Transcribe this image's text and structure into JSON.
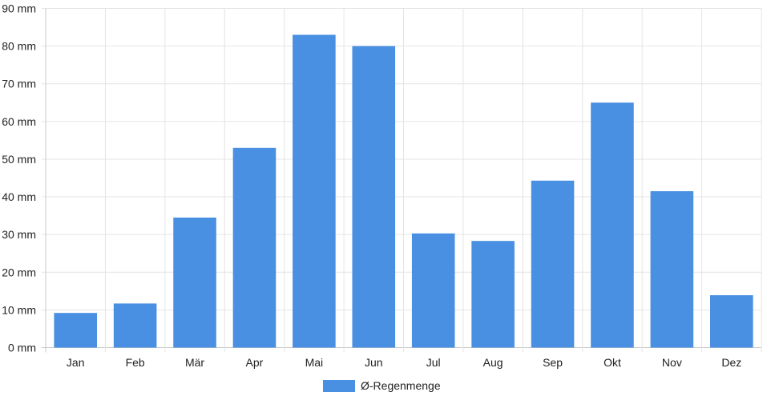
{
  "chart_data": {
    "type": "bar",
    "categories": [
      "Jan",
      "Feb",
      "Mär",
      "Apr",
      "Mai",
      "Jun",
      "Jul",
      "Aug",
      "Sep",
      "Okt",
      "Nov",
      "Dez"
    ],
    "series": [
      {
        "name": "Ø-Regenmenge",
        "values": [
          9.2,
          11.7,
          34.5,
          53.0,
          83.0,
          80.0,
          30.3,
          28.3,
          44.3,
          65.0,
          41.5,
          13.9
        ],
        "color": "#4a90e2"
      }
    ],
    "y_ticks": [
      "0 mm",
      "10 mm",
      "20 mm",
      "30 mm",
      "40 mm",
      "50 mm",
      "60 mm",
      "70 mm",
      "80 mm",
      "90 mm"
    ],
    "ylim": [
      0,
      90
    ],
    "grid": true,
    "legend_position": "bottom",
    "title": "",
    "xlabel": "",
    "ylabel": ""
  }
}
